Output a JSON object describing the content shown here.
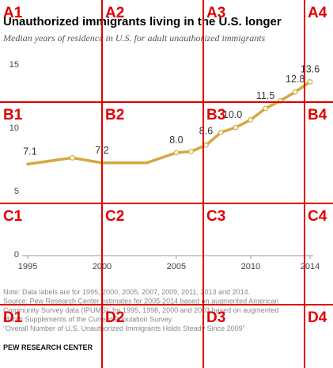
{
  "chart_data": {
    "type": "line",
    "title": "Unauthorized immigrants living in the U.S. longer",
    "subtitle": "Median years of residence in U.S. for adult unauthorized immigrants",
    "x": [
      1995,
      1998,
      2000,
      2003,
      2005,
      2006,
      2007,
      2008,
      2009,
      2010,
      2011,
      2012,
      2013,
      2014
    ],
    "values": [
      7.1,
      7.6,
      7.2,
      7.2,
      8.0,
      8.1,
      8.6,
      9.6,
      10.0,
      10.6,
      11.5,
      12.1,
      12.8,
      13.6
    ],
    "data_labels": [
      {
        "x": 1995,
        "text": "7.1"
      },
      {
        "x": 2000,
        "text": "7.2"
      },
      {
        "x": 2005,
        "text": "8.0"
      },
      {
        "x": 2007,
        "text": "8.6"
      },
      {
        "x": 2009,
        "text": "10.0"
      },
      {
        "x": 2011,
        "text": "11.5"
      },
      {
        "x": 2013,
        "text": "12.8"
      },
      {
        "x": 2014,
        "text": "13.6"
      }
    ],
    "x_ticks": [
      1995,
      2000,
      2005,
      2010,
      2014
    ],
    "y_ticks": [
      0,
      5,
      10,
      15
    ],
    "xlim": [
      1995,
      2014
    ],
    "ylim": [
      0,
      15
    ],
    "line_color": "#d4a93e",
    "grid": false
  },
  "notes": [
    "Note: Data labels are for 1995, 2000, 2005, 2007, 2009, 2011, 2013 and 2014.",
    "Source: Pew Research Center estimates for 2005-2014 based on augmented American",
    "Community Survey data (IPUMS); for 1995, 1998, 2000 and 2003 based on augmented",
    "March Supplements of the Current Population Survey.",
    "“Overall Number of U.S. Unauthorized Immigrants Holds Steady Since 2009”"
  ],
  "brand": "PEW RESEARCH CENTER",
  "overlay_grid": {
    "color": "#e00000",
    "labels": [
      [
        "A1",
        "A2",
        "A3",
        "A4"
      ],
      [
        "B1",
        "B2",
        "B3",
        "B4"
      ],
      [
        "C1",
        "C2",
        "C3",
        "C4"
      ],
      [
        "D1",
        "D2",
        "D3",
        "D4"
      ]
    ]
  }
}
